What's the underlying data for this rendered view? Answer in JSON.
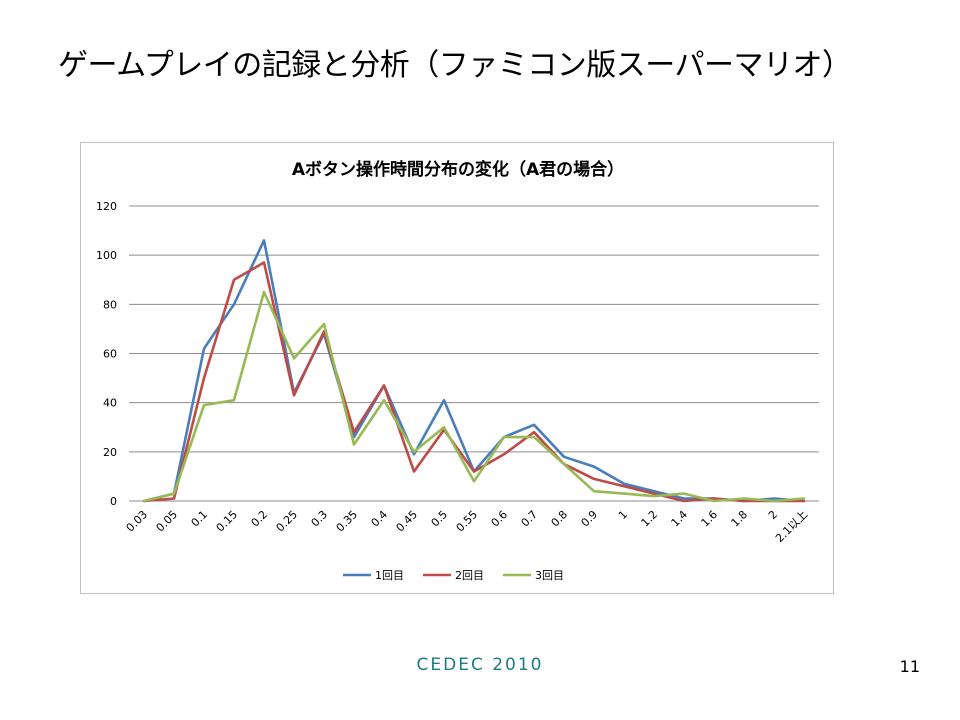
{
  "slide": {
    "title": "ゲームプレイの記録と分析（ファミコン版スーパーマリオ）",
    "footer": "CEDEC  2010",
    "page_number": "11"
  },
  "colors": {
    "series": [
      "#4a7ebb",
      "#be4b48",
      "#98b954"
    ],
    "grid": "#8c8c8c",
    "footer": "#1e7b83"
  },
  "chart_data": {
    "type": "line",
    "title": "Aボタン操作時間分布の変化（A君の場合）",
    "categories": [
      "0.03",
      "0.05",
      "0.1",
      "0.15",
      "0.2",
      "0.25",
      "0.3",
      "0.35",
      "0.4",
      "0.45",
      "0.5",
      "0.55",
      "0.6",
      "0.7",
      "0.8",
      "0.9",
      "1",
      "1.2",
      "1.4",
      "1.6",
      "1.8",
      "2",
      "2.1以上"
    ],
    "yticks": [
      "0",
      "20",
      "40",
      "60",
      "80",
      "100",
      "120"
    ],
    "ylim": [
      0,
      120
    ],
    "grid": true,
    "legend_position": "bottom",
    "series": [
      {
        "name": "1回目",
        "values": [
          0,
          3,
          62,
          80,
          106,
          44,
          68,
          26,
          47,
          19,
          41,
          12,
          26,
          31,
          18,
          14,
          7,
          4,
          1,
          1,
          0,
          1,
          0
        ]
      },
      {
        "name": "2回目",
        "values": [
          0,
          1,
          50,
          90,
          97,
          43,
          69,
          28,
          47,
          12,
          29,
          12,
          19,
          28,
          15,
          9,
          6,
          3,
          0,
          1,
          0,
          0,
          0
        ]
      },
      {
        "name": "3回目",
        "values": [
          0,
          3,
          39,
          41,
          85,
          58,
          72,
          23,
          41,
          20,
          30,
          8,
          26,
          26,
          15,
          4,
          3,
          2,
          3,
          0,
          1,
          0,
          1
        ]
      }
    ]
  }
}
